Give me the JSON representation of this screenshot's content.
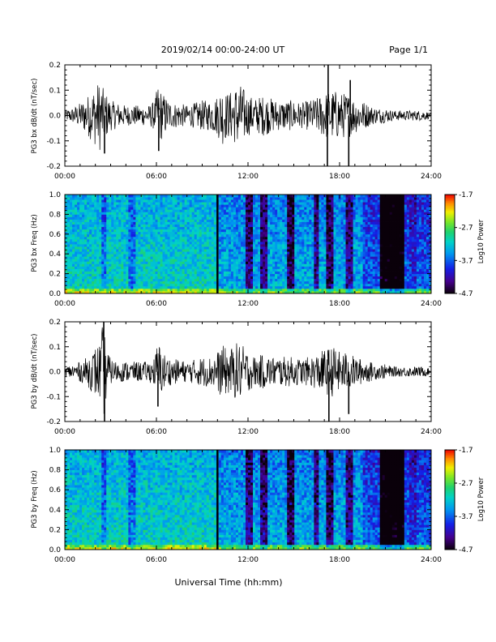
{
  "header": {
    "date_range": "2019/02/14  00:00-24:00 UT",
    "page": "Page 1/1"
  },
  "x_axis": {
    "title": "Universal Time (hh:mm)",
    "ticks": [
      "00:00",
      "06:00",
      "12:00",
      "18:00",
      "24:00"
    ]
  },
  "colorbar": {
    "label": "Log10 Power",
    "ticks": [
      "-1.7",
      "-2.7",
      "-3.7",
      "-4.7"
    ]
  },
  "chart_data": [
    {
      "type": "line",
      "ylabel": "PG3 bx dB/dt (nT/sec)",
      "xlim": [
        0,
        24
      ],
      "ylim": [
        -0.2,
        0.2
      ],
      "yticks": [
        "0.2",
        "0.1",
        "0.0",
        "-0.1",
        "-0.2"
      ],
      "series": [
        {
          "values": []
        }
      ],
      "envelope": {
        "x": [
          0,
          0.5,
          1,
          1.5,
          2,
          2.3,
          2.5,
          2.8,
          3,
          3.5,
          4,
          4.5,
          5,
          5.5,
          5.9,
          6.1,
          6.4,
          7,
          7.5,
          8,
          8.5,
          9,
          9.5,
          10,
          10.3,
          10.6,
          11,
          11.3,
          11.6,
          12,
          12.5,
          13,
          13.5,
          14,
          14.5,
          15,
          15.5,
          16,
          16.5,
          17,
          17.4,
          17.7,
          18,
          18.5,
          19,
          19.5,
          20,
          20.5,
          21,
          21.5,
          22,
          22.5,
          23,
          23.5,
          24
        ],
        "amp": [
          0.02,
          0.03,
          0.05,
          0.08,
          0.12,
          0.14,
          0.11,
          0.08,
          0.06,
          0.05,
          0.04,
          0.04,
          0.04,
          0.04,
          0.06,
          0.13,
          0.09,
          0.05,
          0.05,
          0.04,
          0.05,
          0.06,
          0.06,
          0.08,
          0.12,
          0.09,
          0.1,
          0.13,
          0.12,
          0.08,
          0.07,
          0.08,
          0.07,
          0.06,
          0.06,
          0.06,
          0.05,
          0.06,
          0.07,
          0.09,
          0.1,
          0.1,
          0.09,
          0.09,
          0.07,
          0.06,
          0.04,
          0.03,
          0.03,
          0.02,
          0.02,
          0.02,
          0.02,
          0.02,
          0.01
        ]
      },
      "spikes": [
        {
          "x": 17.25,
          "y": 0.2
        },
        {
          "x": 17.2,
          "y": -0.2
        },
        {
          "x": 18.6,
          "y": -0.2
        },
        {
          "x": 18.7,
          "y": 0.14
        },
        {
          "x": 2.6,
          "y": -0.15
        },
        {
          "x": 6.15,
          "y": -0.14
        }
      ]
    },
    {
      "type": "heatmap",
      "ylabel": "PG3 bx Freq (Hz)",
      "xlim": [
        0,
        24
      ],
      "ylim": [
        0,
        1.0
      ],
      "yticks": [
        "1.0",
        "0.8",
        "0.6",
        "0.4",
        "0.2",
        "0.0"
      ],
      "zlim": [
        -4.7,
        -1.7
      ],
      "gap_line_x": 10.0
    },
    {
      "type": "line",
      "ylabel": "PG3 by dB/dt (nT/sec)",
      "xlim": [
        0,
        24
      ],
      "ylim": [
        -0.2,
        0.2
      ],
      "yticks": [
        "0.2",
        "0.1",
        "0.0",
        "-0.1",
        "-0.2"
      ],
      "series": [
        {
          "values": []
        }
      ],
      "envelope": {
        "x": [
          0,
          0.5,
          1,
          1.5,
          2,
          2.3,
          2.5,
          2.8,
          3,
          3.5,
          4,
          4.5,
          5,
          5.5,
          5.9,
          6.1,
          6.4,
          7,
          7.5,
          8,
          8.5,
          9,
          9.5,
          10,
          10.3,
          10.6,
          11,
          11.3,
          11.6,
          12,
          12.5,
          13,
          13.5,
          14,
          14.5,
          15,
          15.5,
          16,
          16.5,
          17,
          17.4,
          17.7,
          18,
          18.5,
          19,
          19.5,
          20,
          20.5,
          21,
          21.5,
          22,
          22.5,
          23,
          23.5,
          24
        ],
        "amp": [
          0.02,
          0.03,
          0.04,
          0.06,
          0.1,
          0.12,
          0.2,
          0.09,
          0.05,
          0.04,
          0.04,
          0.04,
          0.04,
          0.04,
          0.06,
          0.13,
          0.08,
          0.05,
          0.05,
          0.04,
          0.05,
          0.06,
          0.06,
          0.08,
          0.11,
          0.09,
          0.1,
          0.12,
          0.11,
          0.08,
          0.06,
          0.07,
          0.06,
          0.06,
          0.06,
          0.06,
          0.05,
          0.06,
          0.07,
          0.09,
          0.1,
          0.1,
          0.08,
          0.08,
          0.06,
          0.05,
          0.04,
          0.03,
          0.03,
          0.02,
          0.02,
          0.02,
          0.02,
          0.02,
          0.01
        ]
      },
      "spikes": [
        {
          "x": 2.55,
          "y": 0.2
        },
        {
          "x": 2.6,
          "y": -0.2
        },
        {
          "x": 17.3,
          "y": -0.2
        },
        {
          "x": 18.6,
          "y": -0.17
        },
        {
          "x": 6.1,
          "y": -0.14
        }
      ]
    },
    {
      "type": "heatmap",
      "ylabel": "PG3 by Freq (Hz)",
      "xlim": [
        0,
        24
      ],
      "ylim": [
        0,
        1.0
      ],
      "yticks": [
        "1.0",
        "0.8",
        "0.6",
        "0.4",
        "0.2",
        "0.0"
      ],
      "zlim": [
        -4.7,
        -1.7
      ],
      "gap_line_x": 10.0
    }
  ]
}
